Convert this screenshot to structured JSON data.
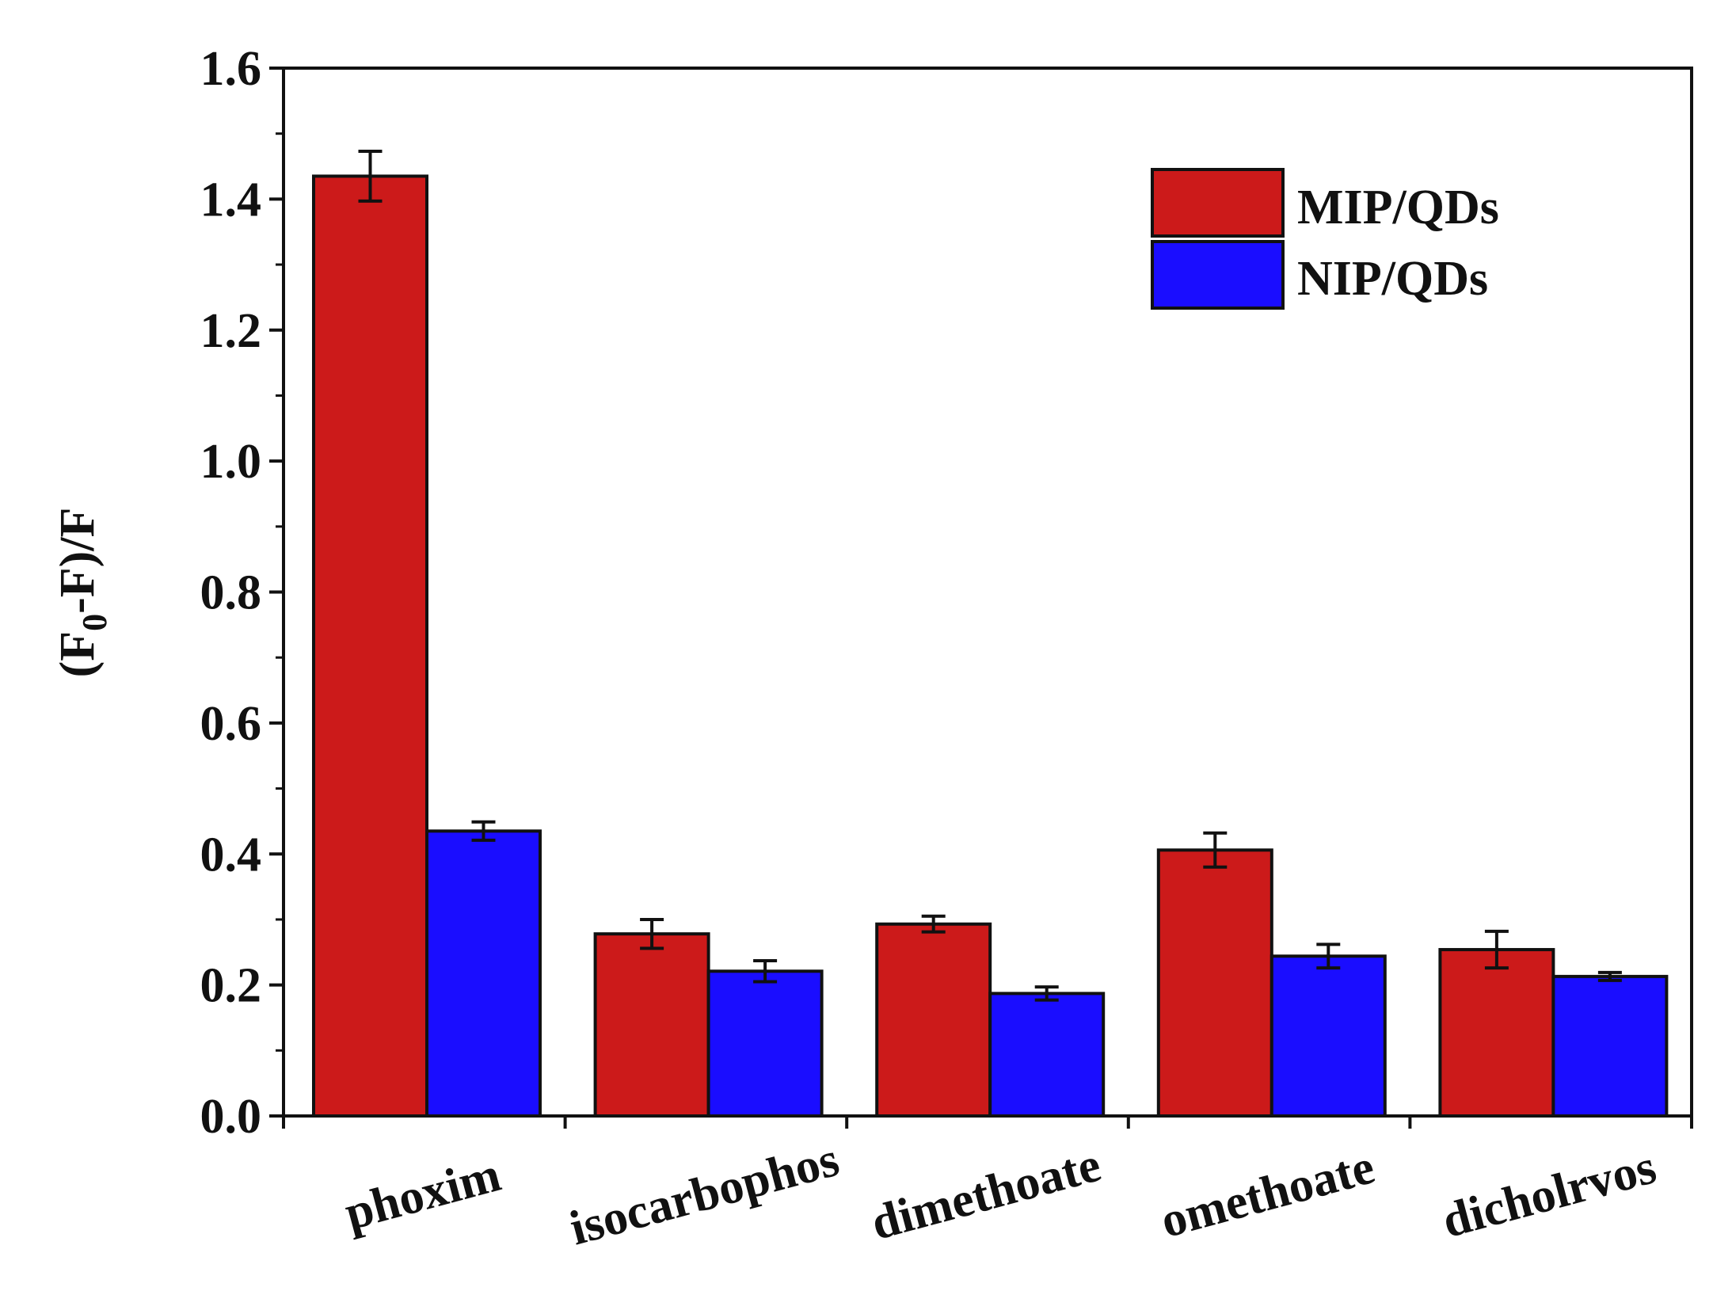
{
  "chart_data": {
    "type": "bar",
    "title": "",
    "xlabel": "",
    "ylabel": {
      "prefix": "(F",
      "subscript": "0",
      "suffix": "-F)/F"
    },
    "ylim": [
      0,
      1.6
    ],
    "yticks": [
      "0.0",
      "0.2",
      "0.4",
      "0.6",
      "0.8",
      "1.0",
      "1.2",
      "1.4",
      "1.6"
    ],
    "categories": [
      "phoxim",
      "isocarbophos",
      "dimethoate",
      "omethoate",
      "dicholrvos"
    ],
    "legend_position": "top-right",
    "series": [
      {
        "name": "MIP/QDs",
        "color": "#cc1a1a",
        "values": [
          1.435,
          0.278,
          0.293,
          0.406,
          0.254
        ],
        "errors": [
          0.038,
          0.022,
          0.012,
          0.026,
          0.028
        ]
      },
      {
        "name": "NIP/QDs",
        "color": "#1a0dff",
        "values": [
          0.435,
          0.221,
          0.187,
          0.244,
          0.213
        ],
        "errors": [
          0.014,
          0.016,
          0.01,
          0.018,
          0.006
        ]
      }
    ]
  }
}
